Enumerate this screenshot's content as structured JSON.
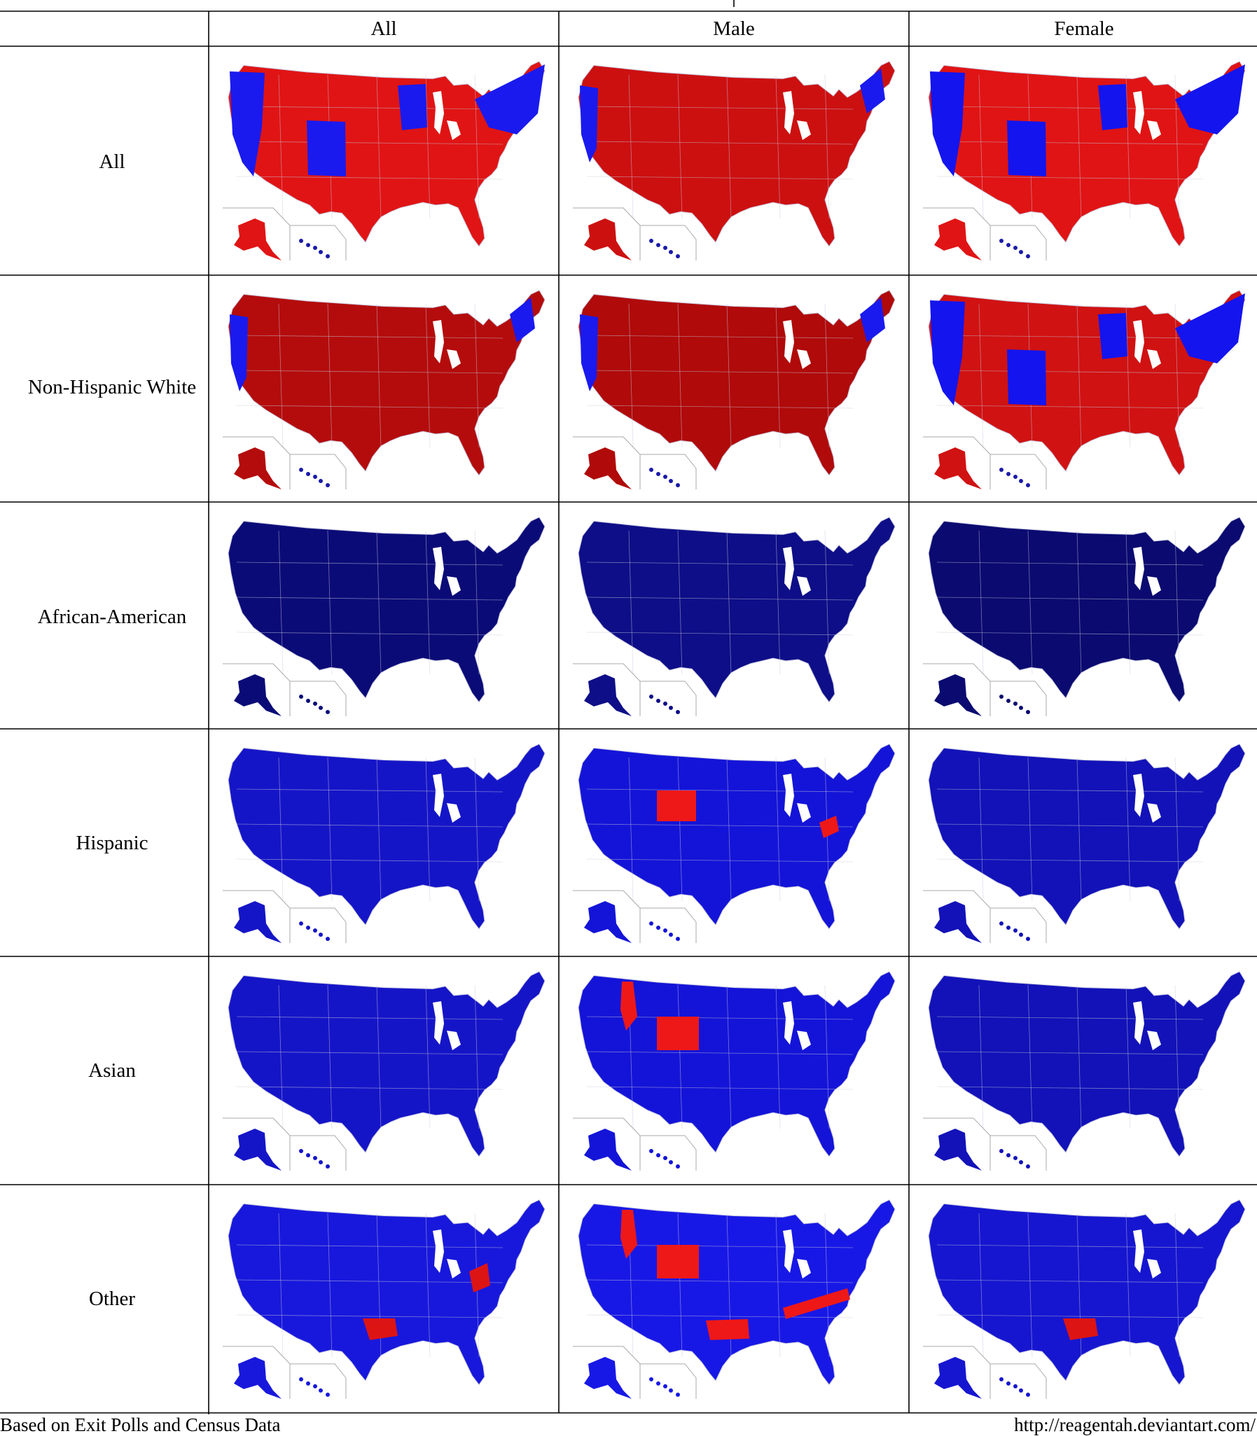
{
  "columns": [
    "All",
    "Male",
    "Female"
  ],
  "rows": [
    {
      "label": "All",
      "maps": [
        {
          "base": "#e01414",
          "alt": "#1a1aee",
          "flag": "all-all"
        },
        {
          "base": "#cc1010",
          "alt": "#1a1aee",
          "flag": "all-male"
        },
        {
          "base": "#e01414",
          "alt": "#1414ee",
          "flag": "all-female"
        }
      ]
    },
    {
      "label": "Non-Hispanic White",
      "maps": [
        {
          "base": "#b40c0c",
          "alt": "#1a1aee",
          "flag": "nhw-all"
        },
        {
          "base": "#b00a0a",
          "alt": "#1a1aee",
          "flag": "nhw-male"
        },
        {
          "base": "#d01212",
          "alt": "#1414ee",
          "flag": "nhw-female"
        }
      ]
    },
    {
      "label": "African-American",
      "maps": [
        {
          "base": "#0b0b78",
          "alt": "#0b0b78",
          "flag": "aa-all"
        },
        {
          "base": "#0e0e88",
          "alt": "#0e0e88",
          "flag": "aa-male"
        },
        {
          "base": "#0a0a70",
          "alt": "#0a0a70",
          "flag": "aa-female"
        }
      ]
    },
    {
      "label": "Hispanic",
      "maps": [
        {
          "base": "#1515c8",
          "alt": "#1515c8",
          "flag": "his-all"
        },
        {
          "base": "#1414d8",
          "alt": "#ee1818",
          "flag": "his-male"
        },
        {
          "base": "#1212b8",
          "alt": "#1212b8",
          "flag": "his-female"
        }
      ]
    },
    {
      "label": "Asian",
      "maps": [
        {
          "base": "#1515c8",
          "alt": "#1515c8",
          "flag": "as-all"
        },
        {
          "base": "#1414d8",
          "alt": "#ee1818",
          "flag": "as-male"
        },
        {
          "base": "#1212b8",
          "alt": "#1212b8",
          "flag": "as-female"
        }
      ]
    },
    {
      "label": "Other",
      "maps": [
        {
          "base": "#1818dc",
          "alt": "#dd1414",
          "flag": "oth-all"
        },
        {
          "base": "#1818e6",
          "alt": "#ee1818",
          "flag": "oth-male"
        },
        {
          "base": "#1616d0",
          "alt": "#dd1414",
          "flag": "oth-female"
        }
      ]
    }
  ],
  "footer": {
    "left": "Based on Exit Polls and Census Data",
    "right": "http://reagentah.deviantart.com/"
  },
  "legend_colors": {
    "republican": "#e01414",
    "democrat": "#1a1aee"
  }
}
